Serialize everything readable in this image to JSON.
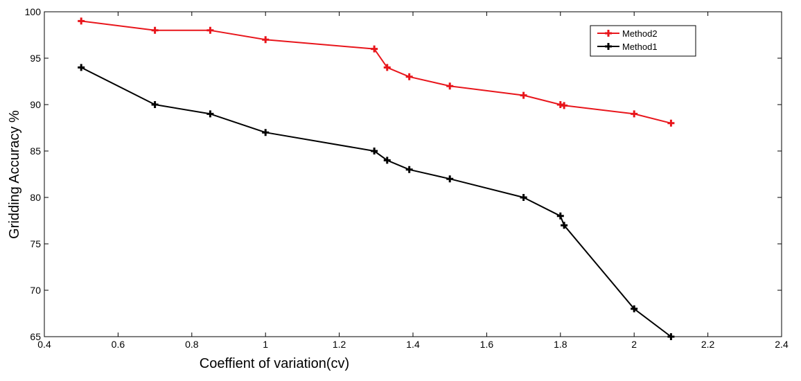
{
  "chart_data": {
    "type": "line",
    "title": "",
    "xlabel": "Coeffient of variation(cv)",
    "ylabel": "Gridding Accuracy  %",
    "xlim": [
      0.4,
      2.4
    ],
    "ylim": [
      65,
      100
    ],
    "xticks": [
      "0.4",
      "0.6",
      "0.8",
      "1",
      "1.2",
      "1.4",
      "1.6",
      "1.8",
      "2",
      "2.2",
      "2.4"
    ],
    "yticks": [
      "65",
      "70",
      "75",
      "80",
      "85",
      "90",
      "95",
      "100"
    ],
    "grid": false,
    "legend_position": "top-right",
    "series": [
      {
        "name": "Method2",
        "color": "#e8151b",
        "marker": "plus",
        "x": [
          0.5,
          0.7,
          0.85,
          1.0,
          1.295,
          1.33,
          1.39,
          1.5,
          1.7,
          1.8,
          1.81,
          2.0,
          2.1
        ],
        "y": [
          99,
          98,
          98,
          97,
          96,
          94,
          93,
          92,
          91,
          90,
          89.9,
          89,
          88
        ]
      },
      {
        "name": "Method1",
        "color": "#000000",
        "marker": "plus",
        "x": [
          0.5,
          0.7,
          0.85,
          1.0,
          1.295,
          1.33,
          1.39,
          1.5,
          1.7,
          1.8,
          1.81,
          2.0,
          2.1
        ],
        "y": [
          94,
          90,
          89,
          87,
          85,
          84,
          83,
          82,
          80,
          78,
          77,
          68,
          65
        ]
      }
    ]
  }
}
